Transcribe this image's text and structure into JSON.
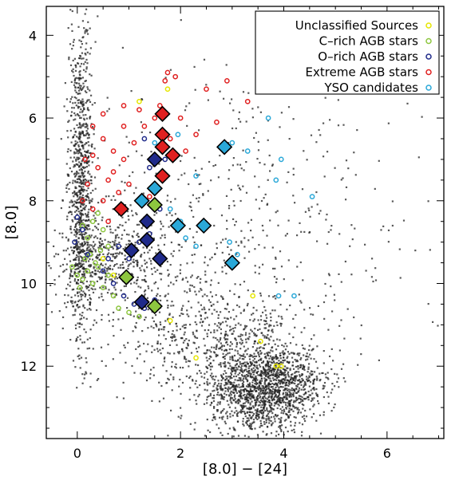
{
  "chart_data": {
    "type": "scatter",
    "xlabel": "[8.0] − [24]",
    "ylabel": "[8.0]",
    "xlim": [
      -0.6,
      7.1
    ],
    "ylim": [
      13.75,
      3.3
    ],
    "y_inverted": true,
    "xticks": [
      0,
      2,
      4,
      6
    ],
    "yticks": [
      4,
      6,
      8,
      10,
      12
    ],
    "legend": {
      "position": "top-right",
      "entries": [
        {
          "label": "Unclassified Sources",
          "color": "#e6e600"
        },
        {
          "label": "C–rich AGB stars",
          "color": "#8dc63f"
        },
        {
          "label": "O–rich AGB stars",
          "color": "#1f2a8a"
        },
        {
          "label": "Extreme AGB stars",
          "color": "#e02020"
        },
        {
          "label": "YSO candidates",
          "color": "#2aa8d8"
        }
      ]
    },
    "background_density": {
      "description_color": "#000000",
      "clusters": [
        {
          "center": [
            0.05,
            7.5
          ],
          "spread": [
            0.12,
            2.0
          ],
          "n": 900
        },
        {
          "center": [
            0.6,
            9.3
          ],
          "spread": [
            0.6,
            0.6
          ],
          "n": 500
        },
        {
          "center": [
            3.6,
            12.5
          ],
          "spread": [
            0.55,
            0.55
          ],
          "n": 1600
        },
        {
          "center": [
            2.5,
            11.2
          ],
          "spread": [
            1.0,
            0.8
          ],
          "n": 600
        },
        {
          "center": [
            3.0,
            8.5
          ],
          "spread": [
            1.6,
            1.8
          ],
          "n": 500
        }
      ]
    },
    "series": [
      {
        "name": "Unclassified Sources",
        "marker": "open-circle",
        "color": "#e6e600",
        "points": [
          [
            1.8,
            10.9
          ],
          [
            2.3,
            11.8
          ],
          [
            3.55,
            11.4
          ],
          [
            3.85,
            12.0
          ],
          [
            3.95,
            12.0
          ],
          [
            3.4,
            10.3
          ],
          [
            1.2,
            5.6
          ],
          [
            1.75,
            5.3
          ],
          [
            0.7,
            9.8
          ],
          [
            0.5,
            9.4
          ]
        ]
      },
      {
        "name": "C–rich AGB stars",
        "marker": "open-circle",
        "color": "#8dc63f",
        "points": [
          [
            -0.1,
            9.6
          ],
          [
            0.0,
            9.8
          ],
          [
            0.1,
            9.9
          ],
          [
            0.2,
            9.7
          ],
          [
            0.3,
            10.0
          ],
          [
            0.4,
            9.6
          ],
          [
            0.15,
            9.4
          ],
          [
            0.25,
            9.3
          ],
          [
            0.35,
            9.5
          ],
          [
            0.5,
            10.1
          ],
          [
            0.6,
            9.8
          ],
          [
            0.45,
            9.2
          ],
          [
            0.05,
            10.1
          ],
          [
            0.7,
            10.3
          ],
          [
            1.2,
            10.8
          ],
          [
            0.8,
            10.6
          ],
          [
            1.0,
            10.7
          ],
          [
            0.3,
            8.5
          ],
          [
            0.5,
            8.7
          ],
          [
            0.2,
            8.9
          ],
          [
            0.6,
            9.1
          ],
          [
            0.4,
            8.3
          ],
          [
            0.1,
            8.6
          ]
        ]
      },
      {
        "name": "O–rich AGB stars",
        "marker": "open-circle",
        "color": "#1f2a8a",
        "points": [
          [
            0.0,
            8.4
          ],
          [
            0.1,
            8.7
          ],
          [
            -0.05,
            9.0
          ],
          [
            0.2,
            9.3
          ],
          [
            0.5,
            9.7
          ],
          [
            0.7,
            10.0
          ],
          [
            0.9,
            10.3
          ],
          [
            1.1,
            10.5
          ],
          [
            1.3,
            10.6
          ],
          [
            1.5,
            10.4
          ],
          [
            1.0,
            9.4
          ],
          [
            1.2,
            9.0
          ],
          [
            1.4,
            8.8
          ],
          [
            1.6,
            8.2
          ],
          [
            1.4,
            7.2
          ],
          [
            1.7,
            7.0
          ],
          [
            1.3,
            6.5
          ],
          [
            0.8,
            9.1
          ],
          [
            0.6,
            9.4
          ],
          [
            1.9,
            6.9
          ]
        ]
      },
      {
        "name": "Extreme AGB stars",
        "marker": "open-circle",
        "color": "#e02020",
        "points": [
          [
            0.3,
            6.2
          ],
          [
            0.5,
            6.5
          ],
          [
            0.7,
            6.8
          ],
          [
            0.9,
            7.0
          ],
          [
            1.1,
            6.6
          ],
          [
            1.3,
            6.2
          ],
          [
            1.5,
            6.0
          ],
          [
            1.2,
            5.8
          ],
          [
            0.9,
            5.7
          ],
          [
            0.4,
            7.2
          ],
          [
            0.6,
            7.5
          ],
          [
            0.8,
            7.8
          ],
          [
            0.2,
            7.6
          ],
          [
            0.1,
            8.0
          ],
          [
            0.3,
            8.2
          ],
          [
            0.5,
            8.0
          ],
          [
            0.7,
            7.3
          ],
          [
            1.0,
            7.6
          ],
          [
            0.3,
            6.9
          ],
          [
            1.6,
            5.7
          ],
          [
            2.0,
            6.0
          ],
          [
            2.3,
            6.4
          ],
          [
            1.9,
            5.0
          ],
          [
            2.5,
            5.3
          ],
          [
            2.9,
            5.1
          ],
          [
            3.3,
            5.6
          ],
          [
            1.75,
            4.9
          ],
          [
            1.7,
            5.1
          ],
          [
            2.7,
            6.1
          ],
          [
            1.8,
            6.5
          ],
          [
            2.1,
            6.8
          ],
          [
            1.4,
            7.9
          ],
          [
            0.6,
            8.5
          ],
          [
            0.9,
            6.2
          ],
          [
            0.15,
            7.0
          ],
          [
            0.5,
            5.9
          ]
        ]
      },
      {
        "name": "YSO candidates",
        "marker": "open-circle",
        "color": "#2aa8d8",
        "points": [
          [
            2.0,
            8.5
          ],
          [
            1.8,
            8.2
          ],
          [
            2.3,
            7.4
          ],
          [
            3.0,
            6.6
          ],
          [
            3.3,
            6.8
          ],
          [
            3.7,
            6.0
          ],
          [
            3.85,
            7.5
          ],
          [
            3.95,
            7.0
          ],
          [
            4.55,
            7.9
          ],
          [
            2.95,
            9.0
          ],
          [
            3.1,
            9.3
          ],
          [
            2.3,
            9.1
          ],
          [
            2.1,
            8.9
          ],
          [
            3.9,
            10.3
          ],
          [
            4.2,
            10.3
          ],
          [
            1.5,
            6.6
          ],
          [
            1.95,
            6.4
          ]
        ]
      },
      {
        "name": "Extreme AGB stars (selected)",
        "marker": "diamond",
        "color": "#e02020",
        "points": [
          [
            1.65,
            5.9
          ],
          [
            1.65,
            6.4
          ],
          [
            1.65,
            6.7
          ],
          [
            1.85,
            6.9
          ],
          [
            1.65,
            7.4
          ],
          [
            0.85,
            8.2
          ]
        ]
      },
      {
        "name": "O–rich AGB stars (selected)",
        "marker": "diamond",
        "color": "#1f2a8a",
        "points": [
          [
            1.5,
            7.0
          ],
          [
            1.35,
            8.5
          ],
          [
            1.35,
            8.95
          ],
          [
            1.05,
            9.2
          ],
          [
            1.6,
            9.4
          ],
          [
            1.25,
            10.45
          ]
        ]
      },
      {
        "name": "C–rich AGB stars (selected)",
        "marker": "diamond",
        "color": "#8dc63f",
        "points": [
          [
            1.5,
            8.1
          ],
          [
            0.95,
            9.85
          ],
          [
            1.5,
            10.55
          ]
        ]
      },
      {
        "name": "YSO candidates (selected)",
        "marker": "diamond",
        "color": "#2aa8d8",
        "points": [
          [
            1.5,
            7.7
          ],
          [
            1.25,
            8.0
          ],
          [
            2.85,
            6.7
          ],
          [
            1.95,
            8.6
          ],
          [
            2.45,
            8.6
          ],
          [
            3.0,
            9.5
          ]
        ]
      }
    ]
  }
}
